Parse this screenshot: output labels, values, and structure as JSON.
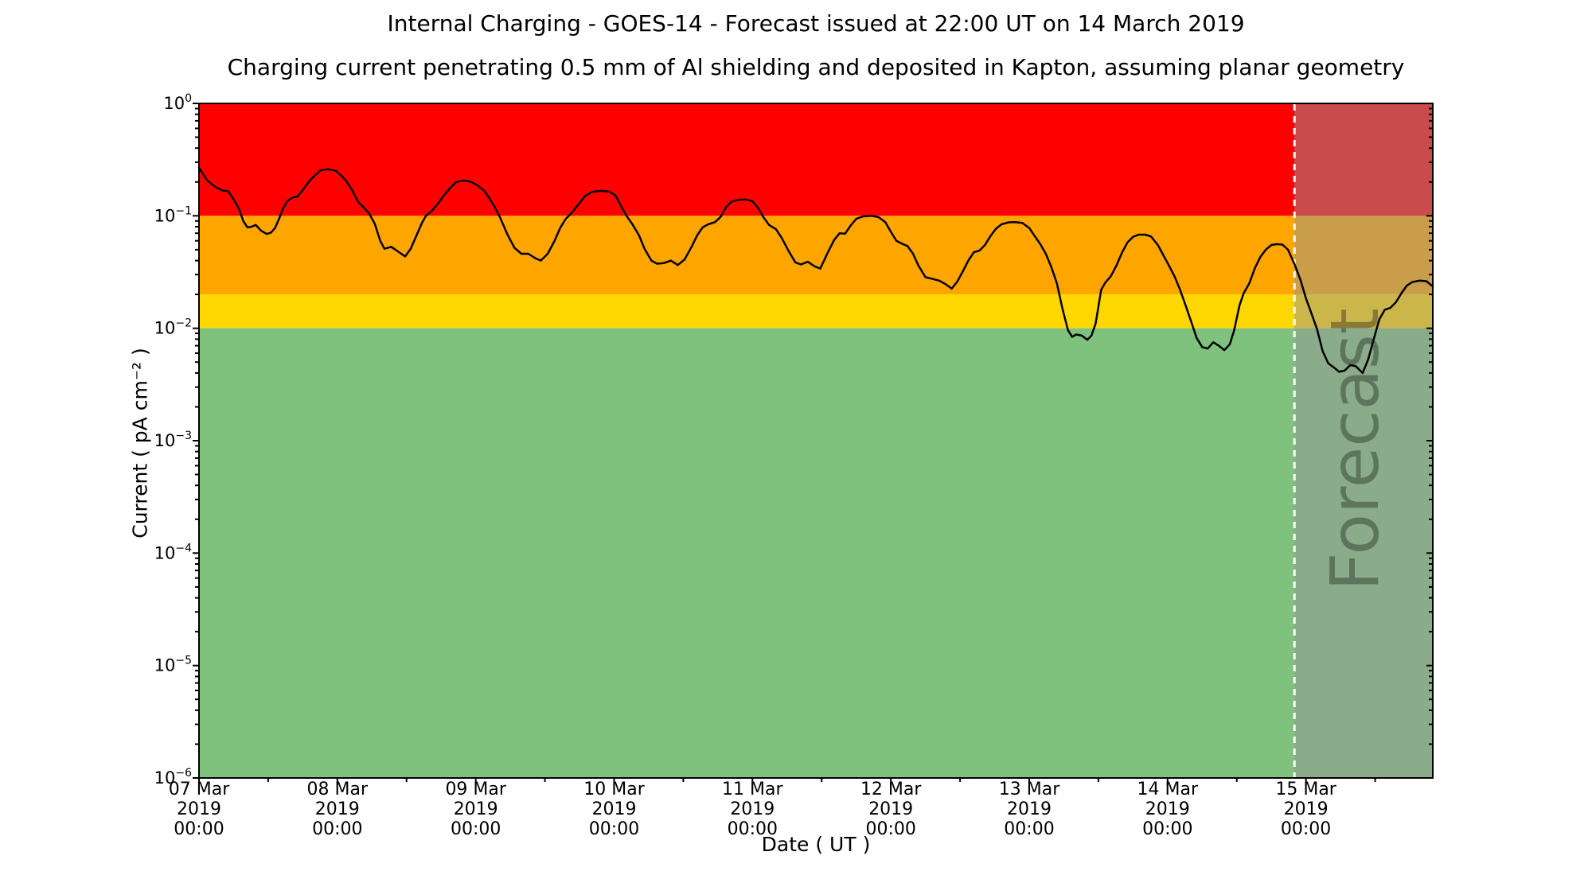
{
  "title": "Internal Charging - GOES-14 - Forecast issued at 22:00 UT on 14 March 2019",
  "subtitle": "Charging current penetrating 0.5 mm of Al shielding and deposited in Kapton, assuming planar geometry",
  "x_axis": {
    "label": "Date ( UT )",
    "range_days": [
      0,
      8.9167
    ],
    "minor_tick_interval_hours": 12,
    "ticks": [
      {
        "day": 0,
        "lines": [
          "07 Mar",
          "2019",
          "00:00"
        ]
      },
      {
        "day": 1,
        "lines": [
          "08 Mar",
          "2019",
          "00:00"
        ]
      },
      {
        "day": 2,
        "lines": [
          "09 Mar",
          "2019",
          "00:00"
        ]
      },
      {
        "day": 3,
        "lines": [
          "10 Mar",
          "2019",
          "00:00"
        ]
      },
      {
        "day": 4,
        "lines": [
          "11 Mar",
          "2019",
          "00:00"
        ]
      },
      {
        "day": 5,
        "lines": [
          "12 Mar",
          "2019",
          "00:00"
        ]
      },
      {
        "day": 6,
        "lines": [
          "13 Mar",
          "2019",
          "00:00"
        ]
      },
      {
        "day": 7,
        "lines": [
          "14 Mar",
          "2019",
          "00:00"
        ]
      },
      {
        "day": 8,
        "lines": [
          "15 Mar",
          "2019",
          "00:00"
        ]
      }
    ]
  },
  "y_axis": {
    "label": "Current ( pA cm⁻² )",
    "scale": "log",
    "range": [
      1e-06,
      1
    ],
    "tick_exponents": [
      0,
      -1,
      -2,
      -3,
      -4,
      -5,
      -6
    ]
  },
  "bands": [
    {
      "name": "red",
      "color": "#ff0000",
      "from": 0.1,
      "to": 1.0
    },
    {
      "name": "orange",
      "color": "#ffa500",
      "from": 0.02,
      "to": 0.1
    },
    {
      "name": "gold",
      "color": "#ffd700",
      "from": 0.01,
      "to": 0.02
    },
    {
      "name": "green",
      "color": "#7ec27e",
      "from": 1e-06,
      "to": 0.01
    }
  ],
  "forecast": {
    "label": "Forecast",
    "start_day": 7.9167,
    "start_time": "22:00 UT 14 March 2019",
    "overlay_color": "rgba(150,150,150,0.5)",
    "divider_color": "#ffffff",
    "watermark_color": "#3f3f3f",
    "watermark_opacity": 0.32
  },
  "chart_data": {
    "type": "line",
    "title": "Internal Charging - GOES-14",
    "xlabel": "Date ( UT )",
    "ylabel": "Current ( pA cm⁻² )",
    "x_unit": "days since 07 Mar 2019 00:00 UT",
    "y_unit": "pA cm⁻²",
    "y_scale": "log",
    "x_range_days": [
      0,
      8.9167
    ],
    "y_range": [
      1e-06,
      1
    ],
    "grid": false,
    "legend": false,
    "thresholds": [
      {
        "value": 0.01,
        "meaning": "green / yellow boundary"
      },
      {
        "value": 0.02,
        "meaning": "yellow / orange boundary"
      },
      {
        "value": 0.1,
        "meaning": "orange / red boundary"
      }
    ],
    "series": [
      {
        "name": "charging current",
        "color": "#000000",
        "points": [
          [
            0.0,
            0.268
          ],
          [
            0.06,
            0.206
          ],
          [
            0.12,
            0.18
          ],
          [
            0.17,
            0.168
          ],
          [
            0.21,
            0.166
          ],
          [
            0.25,
            0.14
          ],
          [
            0.29,
            0.115
          ],
          [
            0.32,
            0.09
          ],
          [
            0.35,
            0.079
          ],
          [
            0.38,
            0.08
          ],
          [
            0.41,
            0.083
          ],
          [
            0.45,
            0.0735
          ],
          [
            0.49,
            0.069
          ],
          [
            0.52,
            0.071
          ],
          [
            0.55,
            0.078
          ],
          [
            0.58,
            0.095
          ],
          [
            0.61,
            0.118
          ],
          [
            0.64,
            0.136
          ],
          [
            0.68,
            0.146
          ],
          [
            0.71,
            0.148
          ],
          [
            0.75,
            0.17
          ],
          [
            0.8,
            0.206
          ],
          [
            0.84,
            0.23
          ],
          [
            0.88,
            0.255
          ],
          [
            0.93,
            0.26
          ],
          [
            0.99,
            0.251
          ],
          [
            1.03,
            0.227
          ],
          [
            1.07,
            0.2
          ],
          [
            1.11,
            0.166
          ],
          [
            1.15,
            0.133
          ],
          [
            1.19,
            0.119
          ],
          [
            1.23,
            0.105
          ],
          [
            1.27,
            0.085
          ],
          [
            1.31,
            0.06
          ],
          [
            1.34,
            0.051
          ],
          [
            1.39,
            0.053
          ],
          [
            1.44,
            0.048
          ],
          [
            1.49,
            0.0435
          ],
          [
            1.53,
            0.051
          ],
          [
            1.57,
            0.066
          ],
          [
            1.61,
            0.086
          ],
          [
            1.64,
            0.1
          ],
          [
            1.68,
            0.11
          ],
          [
            1.72,
            0.125
          ],
          [
            1.77,
            0.152
          ],
          [
            1.82,
            0.18
          ],
          [
            1.86,
            0.2
          ],
          [
            1.91,
            0.206
          ],
          [
            1.96,
            0.202
          ],
          [
            2.01,
            0.188
          ],
          [
            2.06,
            0.168
          ],
          [
            2.1,
            0.143
          ],
          [
            2.14,
            0.118
          ],
          [
            2.18,
            0.094
          ],
          [
            2.23,
            0.068
          ],
          [
            2.28,
            0.052
          ],
          [
            2.33,
            0.046
          ],
          [
            2.38,
            0.046
          ],
          [
            2.43,
            0.042
          ],
          [
            2.47,
            0.04
          ],
          [
            2.52,
            0.046
          ],
          [
            2.57,
            0.06
          ],
          [
            2.61,
            0.078
          ],
          [
            2.65,
            0.094
          ],
          [
            2.69,
            0.105
          ],
          [
            2.74,
            0.125
          ],
          [
            2.79,
            0.15
          ],
          [
            2.84,
            0.163
          ],
          [
            2.9,
            0.167
          ],
          [
            2.96,
            0.165
          ],
          [
            3.01,
            0.152
          ],
          [
            3.05,
            0.122
          ],
          [
            3.09,
            0.1
          ],
          [
            3.13,
            0.085
          ],
          [
            3.18,
            0.067
          ],
          [
            3.22,
            0.051
          ],
          [
            3.27,
            0.04
          ],
          [
            3.31,
            0.0375
          ],
          [
            3.36,
            0.038
          ],
          [
            3.41,
            0.04
          ],
          [
            3.46,
            0.0365
          ],
          [
            3.51,
            0.041
          ],
          [
            3.56,
            0.053
          ],
          [
            3.6,
            0.067
          ],
          [
            3.64,
            0.079
          ],
          [
            3.68,
            0.084
          ],
          [
            3.73,
            0.088
          ],
          [
            3.77,
            0.098
          ],
          [
            3.81,
            0.12
          ],
          [
            3.85,
            0.134
          ],
          [
            3.9,
            0.139
          ],
          [
            3.95,
            0.14
          ],
          [
            4.0,
            0.135
          ],
          [
            4.04,
            0.118
          ],
          [
            4.08,
            0.097
          ],
          [
            4.12,
            0.083
          ],
          [
            4.17,
            0.076
          ],
          [
            4.21,
            0.064
          ],
          [
            4.26,
            0.049
          ],
          [
            4.31,
            0.0385
          ],
          [
            4.35,
            0.037
          ],
          [
            4.4,
            0.039
          ],
          [
            4.45,
            0.0355
          ],
          [
            4.49,
            0.034
          ],
          [
            4.54,
            0.046
          ],
          [
            4.59,
            0.061
          ],
          [
            4.63,
            0.07
          ],
          [
            4.67,
            0.0695
          ],
          [
            4.71,
            0.082
          ],
          [
            4.75,
            0.094
          ],
          [
            4.8,
            0.099
          ],
          [
            4.86,
            0.1
          ],
          [
            4.91,
            0.0975
          ],
          [
            4.96,
            0.088
          ],
          [
            5.0,
            0.072
          ],
          [
            5.04,
            0.06
          ],
          [
            5.08,
            0.0565
          ],
          [
            5.12,
            0.054
          ],
          [
            5.16,
            0.046
          ],
          [
            5.2,
            0.036
          ],
          [
            5.25,
            0.0285
          ],
          [
            5.3,
            0.0275
          ],
          [
            5.35,
            0.0265
          ],
          [
            5.4,
            0.0245
          ],
          [
            5.44,
            0.0225
          ],
          [
            5.48,
            0.026
          ],
          [
            5.52,
            0.032
          ],
          [
            5.56,
            0.04
          ],
          [
            5.6,
            0.0475
          ],
          [
            5.64,
            0.049
          ],
          [
            5.68,
            0.055
          ],
          [
            5.72,
            0.066
          ],
          [
            5.76,
            0.077
          ],
          [
            5.8,
            0.084
          ],
          [
            5.85,
            0.0875
          ],
          [
            5.9,
            0.088
          ],
          [
            5.95,
            0.0865
          ],
          [
            6.0,
            0.078
          ],
          [
            6.04,
            0.066
          ],
          [
            6.08,
            0.056
          ],
          [
            6.12,
            0.046
          ],
          [
            6.16,
            0.035
          ],
          [
            6.2,
            0.025
          ],
          [
            6.24,
            0.015
          ],
          [
            6.28,
            0.0096
          ],
          [
            6.31,
            0.0084
          ],
          [
            6.34,
            0.0088
          ],
          [
            6.38,
            0.0086
          ],
          [
            6.42,
            0.0079
          ],
          [
            6.45,
            0.0086
          ],
          [
            6.48,
            0.011
          ],
          [
            6.52,
            0.022
          ],
          [
            6.55,
            0.0255
          ],
          [
            6.59,
            0.029
          ],
          [
            6.63,
            0.036
          ],
          [
            6.67,
            0.047
          ],
          [
            6.71,
            0.058
          ],
          [
            6.75,
            0.065
          ],
          [
            6.79,
            0.068
          ],
          [
            6.84,
            0.068
          ],
          [
            6.88,
            0.0655
          ],
          [
            6.93,
            0.055
          ],
          [
            6.97,
            0.0445
          ],
          [
            7.01,
            0.036
          ],
          [
            7.05,
            0.029
          ],
          [
            7.09,
            0.022
          ],
          [
            7.13,
            0.016
          ],
          [
            7.17,
            0.0115
          ],
          [
            7.21,
            0.0082
          ],
          [
            7.25,
            0.0068
          ],
          [
            7.29,
            0.0066
          ],
          [
            7.33,
            0.0075
          ],
          [
            7.37,
            0.007
          ],
          [
            7.41,
            0.0064
          ],
          [
            7.45,
            0.0072
          ],
          [
            7.48,
            0.0095
          ],
          [
            7.52,
            0.016
          ],
          [
            7.55,
            0.0205
          ],
          [
            7.59,
            0.025
          ],
          [
            7.63,
            0.034
          ],
          [
            7.67,
            0.043
          ],
          [
            7.71,
            0.05
          ],
          [
            7.75,
            0.055
          ],
          [
            7.79,
            0.056
          ],
          [
            7.83,
            0.0555
          ],
          [
            7.87,
            0.05
          ],
          [
            7.92,
            0.0365
          ],
          [
            7.96,
            0.027
          ],
          [
            8.0,
            0.0185
          ],
          [
            8.04,
            0.0135
          ],
          [
            8.08,
            0.0098
          ],
          [
            8.12,
            0.0063
          ],
          [
            8.16,
            0.0049
          ],
          [
            8.2,
            0.0045
          ],
          [
            8.24,
            0.0041
          ],
          [
            8.28,
            0.0042
          ],
          [
            8.32,
            0.0047
          ],
          [
            8.36,
            0.0046
          ],
          [
            8.41,
            0.004
          ],
          [
            8.45,
            0.0053
          ],
          [
            8.49,
            0.008
          ],
          [
            8.53,
            0.012
          ],
          [
            8.57,
            0.0146
          ],
          [
            8.61,
            0.0152
          ],
          [
            8.65,
            0.017
          ],
          [
            8.69,
            0.0205
          ],
          [
            8.73,
            0.024
          ],
          [
            8.77,
            0.0258
          ],
          [
            8.82,
            0.0265
          ],
          [
            8.87,
            0.0262
          ],
          [
            8.917,
            0.0235
          ]
        ]
      }
    ]
  }
}
